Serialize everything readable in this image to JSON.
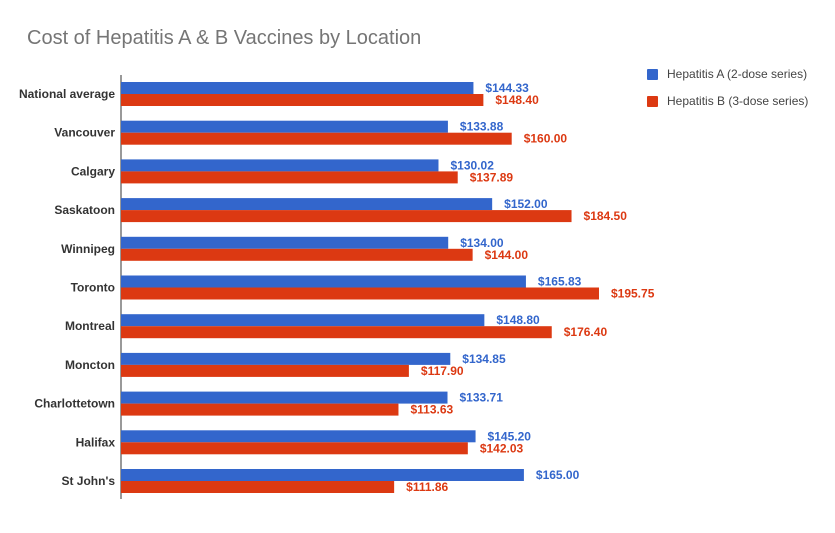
{
  "chart_data": {
    "type": "bar",
    "orientation": "horizontal",
    "title": "Cost of Hepatitis A & B Vaccines by Location",
    "categories": [
      "National average",
      "Vancouver",
      "Calgary",
      "Saskatoon",
      "Winnipeg",
      "Toronto",
      "Montreal",
      "Moncton",
      "Charlottetown",
      "Halifax",
      "St John's"
    ],
    "series": [
      {
        "name": "Hepatitis A (2-dose series)",
        "color": "#3366cc",
        "values": [
          144.33,
          133.88,
          130.02,
          152.0,
          134.0,
          165.83,
          148.8,
          134.85,
          133.71,
          145.2,
          165.0
        ],
        "labels": [
          "$144.33",
          "$133.88",
          "$130.02",
          "$152.00",
          "$134.00",
          "$165.83",
          "$148.80",
          "$134.85",
          "$133.71",
          "$145.20",
          "$165.00"
        ]
      },
      {
        "name": "Hepatitis B (3-dose series)",
        "color": "#dc3912",
        "values": [
          148.4,
          160.0,
          137.89,
          184.5,
          144.0,
          195.75,
          176.4,
          117.9,
          113.63,
          142.03,
          111.86
        ],
        "labels": [
          "$148.40",
          "$160.00",
          "$137.89",
          "$184.50",
          "$144.00",
          "$195.75",
          "$176.40",
          "$117.90",
          "$113.63",
          "$142.03",
          "$111.86"
        ]
      }
    ],
    "xlim": [
      0,
      215
    ],
    "grid": false,
    "legend_position": "right"
  }
}
